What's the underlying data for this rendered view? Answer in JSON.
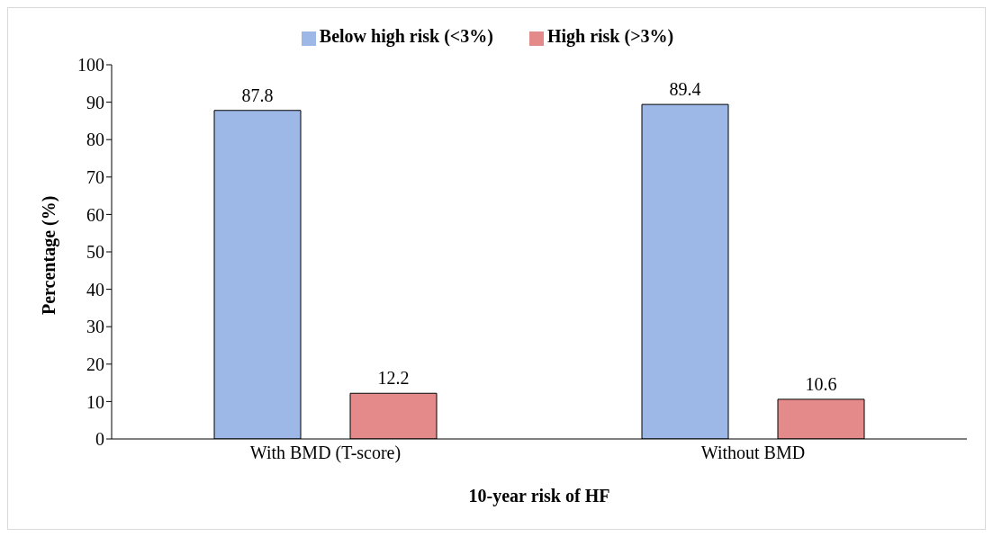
{
  "chart_data": {
    "type": "bar",
    "xlabel": "10-year risk of HF",
    "ylabel": "Percentage (%)",
    "categories": [
      "With BMD (T-score)",
      "Without BMD"
    ],
    "series": [
      {
        "name": "Below high risk (<3%)",
        "color": "#9db8e6",
        "values": [
          87.8,
          89.4
        ]
      },
      {
        "name": "High risk (>3%)",
        "color": "#e58a8a",
        "values": [
          12.2,
          10.6
        ]
      }
    ],
    "ylim": [
      0,
      100
    ],
    "yticks": [
      0,
      10,
      20,
      30,
      40,
      50,
      60,
      70,
      80,
      90,
      100
    ],
    "grid": false,
    "legend": "top",
    "data_labels": true
  }
}
